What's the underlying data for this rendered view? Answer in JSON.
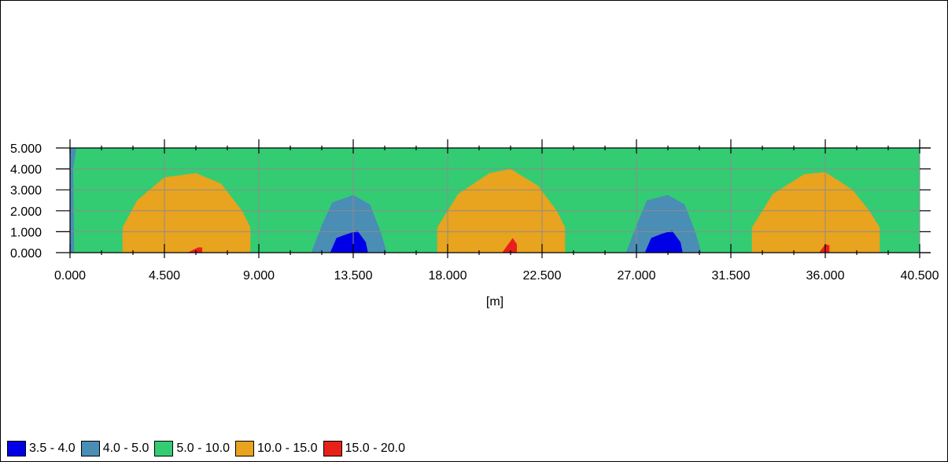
{
  "chart_data": {
    "type": "heatmap",
    "xlabel": "[m]",
    "ylabel": "",
    "xlim": [
      0,
      40.5
    ],
    "ylim": [
      0,
      5
    ],
    "x_ticks": [
      "0.000",
      "4.500",
      "9.000",
      "13.500",
      "18.000",
      "22.500",
      "27.000",
      "31.500",
      "36.000",
      "40.500"
    ],
    "y_ticks": [
      "0.000",
      "1.000",
      "2.000",
      "3.000",
      "4.000",
      "5.000"
    ],
    "grid": true,
    "legend_position": "bottom-left",
    "bins": [
      {
        "label": "3.5 - 4.0",
        "color": "#0000e6"
      },
      {
        "label": "4.0 - 5.0",
        "color": "#4a8db5"
      },
      {
        "label": "5.0 - 10.0",
        "color": "#33cc73"
      },
      {
        "label": "10.0 - 15.0",
        "color": "#e8a31f"
      },
      {
        "label": "15.0 - 20.0",
        "color": "#e8201a"
      }
    ],
    "background_bin": "5.0 - 10.0",
    "regions": [
      {
        "bin": "4.0 - 5.0",
        "points": [
          [
            0,
            0
          ],
          [
            0,
            5
          ],
          [
            0.3,
            5
          ],
          [
            0.15,
            4.0
          ],
          [
            0.2,
            0
          ]
        ]
      },
      {
        "bin": "10.0 - 15.0",
        "points": [
          [
            2.5,
            0
          ],
          [
            2.5,
            1.2
          ],
          [
            3.2,
            2.5
          ],
          [
            4.5,
            3.6
          ],
          [
            6.0,
            3.8
          ],
          [
            7.2,
            3.3
          ],
          [
            8.2,
            2.0
          ],
          [
            8.6,
            1.2
          ],
          [
            8.6,
            0
          ]
        ]
      },
      {
        "bin": "15.0 - 20.0",
        "points": [
          [
            5.6,
            0
          ],
          [
            6.1,
            0.25
          ],
          [
            6.3,
            0.25
          ],
          [
            6.3,
            0
          ]
        ]
      },
      {
        "bin": "4.0 - 5.0",
        "points": [
          [
            11.5,
            0
          ],
          [
            12.0,
            1.3
          ],
          [
            12.5,
            2.4
          ],
          [
            13.5,
            2.75
          ],
          [
            14.3,
            2.3
          ],
          [
            14.8,
            1.0
          ],
          [
            15.1,
            0
          ]
        ]
      },
      {
        "bin": "3.5 - 4.0",
        "points": [
          [
            12.4,
            0
          ],
          [
            12.7,
            0.7
          ],
          [
            13.1,
            0.85
          ],
          [
            13.7,
            1.05
          ],
          [
            14.1,
            0.5
          ],
          [
            14.2,
            0
          ]
        ]
      },
      {
        "bin": "10.0 - 15.0",
        "points": [
          [
            17.5,
            0
          ],
          [
            17.5,
            1.2
          ],
          [
            18.5,
            2.8
          ],
          [
            20.0,
            3.8
          ],
          [
            21.0,
            4.0
          ],
          [
            22.3,
            3.2
          ],
          [
            23.2,
            2.0
          ],
          [
            23.6,
            1.2
          ],
          [
            23.6,
            0
          ]
        ]
      },
      {
        "bin": "15.0 - 20.0",
        "points": [
          [
            20.6,
            0
          ],
          [
            21.1,
            0.7
          ],
          [
            21.3,
            0.4
          ],
          [
            21.3,
            0
          ]
        ]
      },
      {
        "bin": "4.0 - 5.0",
        "points": [
          [
            26.5,
            0
          ],
          [
            27.0,
            1.3
          ],
          [
            27.5,
            2.5
          ],
          [
            28.5,
            2.75
          ],
          [
            29.3,
            2.3
          ],
          [
            29.8,
            1.0
          ],
          [
            30.1,
            0
          ]
        ]
      },
      {
        "bin": "3.5 - 4.0",
        "points": [
          [
            27.4,
            0
          ],
          [
            27.7,
            0.7
          ],
          [
            28.2,
            0.9
          ],
          [
            28.7,
            1.05
          ],
          [
            29.1,
            0.5
          ],
          [
            29.2,
            0
          ]
        ]
      },
      {
        "bin": "10.0 - 15.0",
        "points": [
          [
            32.5,
            0
          ],
          [
            32.5,
            1.2
          ],
          [
            33.5,
            2.8
          ],
          [
            35.0,
            3.75
          ],
          [
            36.0,
            3.85
          ],
          [
            37.3,
            3.0
          ],
          [
            38.1,
            2.0
          ],
          [
            38.6,
            1.2
          ],
          [
            38.6,
            0
          ]
        ]
      },
      {
        "bin": "15.0 - 20.0",
        "points": [
          [
            35.7,
            0
          ],
          [
            36.0,
            0.4
          ],
          [
            36.2,
            0.35
          ],
          [
            36.2,
            0
          ]
        ]
      }
    ]
  },
  "legend": {
    "items": [
      {
        "label": "3.5 - 4.0",
        "color": "#0000e6"
      },
      {
        "label": "4.0 - 5.0",
        "color": "#4a8db5"
      },
      {
        "label": "5.0 - 10.0",
        "color": "#33cc73"
      },
      {
        "label": "10.0 - 15.0",
        "color": "#e8a31f"
      },
      {
        "label": "15.0 - 20.0",
        "color": "#e8201a"
      }
    ]
  }
}
